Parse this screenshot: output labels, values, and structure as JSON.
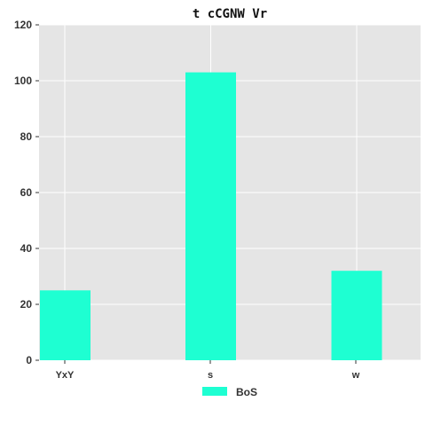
{
  "chart_data": {
    "type": "bar",
    "title": "t cCGNW Vr",
    "xlabel": "",
    "ylabel": "",
    "categories": [
      "YxY",
      "s",
      "w"
    ],
    "series": [
      {
        "name": "BoS",
        "values": [
          25,
          103,
          32
        ],
        "color": "#1effd2"
      }
    ],
    "ylim": [
      0,
      120
    ],
    "yticks": [
      0,
      20,
      40,
      60,
      80,
      100,
      120
    ],
    "grid": true,
    "legend": "bottom-center",
    "background": "#e5e5e5",
    "grid_color": "#ffffff"
  }
}
